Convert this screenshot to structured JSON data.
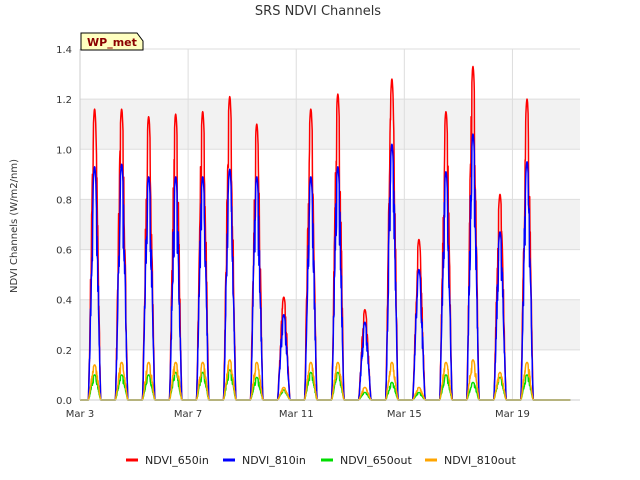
{
  "chart_data": {
    "type": "line",
    "title": "SRS NDVI Channels",
    "xlabel": "",
    "ylabel": "NDVI Channels (W/m2/nm)",
    "xlim": [
      3.0,
      21.5
    ],
    "ylim": [
      0.0,
      1.4
    ],
    "x_unit": "day of March",
    "x_ticks": [
      {
        "value": 3,
        "label": "Mar 3"
      },
      {
        "value": 7,
        "label": "Mar 7"
      },
      {
        "value": 11,
        "label": "Mar 11"
      },
      {
        "value": 15,
        "label": "Mar 15"
      },
      {
        "value": 19,
        "label": "Mar 19"
      }
    ],
    "y_ticks": [
      0.0,
      0.2,
      0.4,
      0.6,
      0.8,
      1.0,
      1.2,
      1.4
    ],
    "y_tick_labels": [
      "0.0",
      "0.2",
      "0.4",
      "0.6",
      "0.8",
      "1.0",
      "1.2",
      "1.4"
    ],
    "grid": true,
    "legend_position": "bottom",
    "badge": "WP_met",
    "daily_peaks": {
      "days": [
        3.5,
        4.5,
        5.5,
        6.5,
        7.5,
        8.5,
        9.5,
        10.5,
        11.5,
        12.5,
        13.5,
        14.5,
        15.5,
        16.5,
        17.5,
        18.5,
        19.5,
        20.5
      ],
      "peak_day_offset": 0.54
    },
    "series": [
      {
        "name": "NDVI_650in",
        "color": "#ff0000",
        "peaks": [
          1.16,
          1.16,
          1.13,
          1.14,
          1.15,
          1.21,
          1.1,
          0.41,
          1.16,
          1.22,
          0.36,
          1.28,
          0.64,
          1.15,
          1.33,
          0.82,
          1.2,
          0
        ]
      },
      {
        "name": "NDVI_810in",
        "color": "#0000ff",
        "peaks": [
          0.93,
          0.94,
          0.89,
          0.89,
          0.89,
          0.92,
          0.89,
          0.34,
          0.89,
          0.93,
          0.31,
          1.02,
          0.52,
          0.91,
          1.06,
          0.67,
          0.95,
          0
        ]
      },
      {
        "name": "NDVI_650out",
        "color": "#00dd00",
        "peaks": [
          0.1,
          0.1,
          0.1,
          0.11,
          0.11,
          0.12,
          0.09,
          0.04,
          0.11,
          0.11,
          0.03,
          0.07,
          0.03,
          0.1,
          0.07,
          0.09,
          0.1,
          0
        ]
      },
      {
        "name": "NDVI_810out",
        "color": "#ffa500",
        "peaks": [
          0.14,
          0.15,
          0.15,
          0.15,
          0.15,
          0.16,
          0.15,
          0.05,
          0.15,
          0.15,
          0.05,
          0.15,
          0.05,
          0.15,
          0.16,
          0.11,
          0.15,
          0
        ]
      }
    ]
  }
}
